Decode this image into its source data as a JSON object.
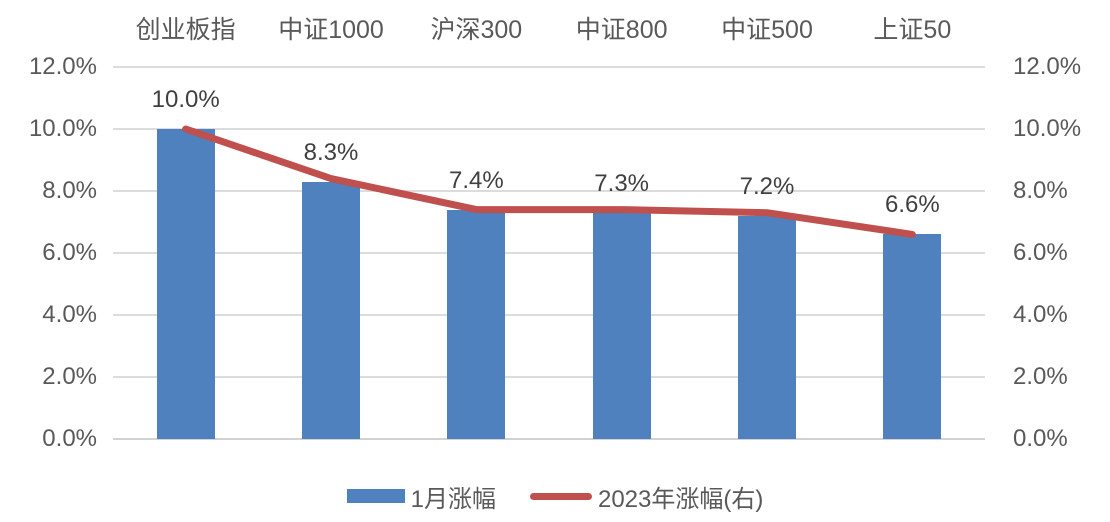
{
  "chart_data": {
    "type": "bar",
    "combo": "bar + line, dual percent axes",
    "categories": [
      "创业板指",
      "中证1000",
      "沪深300",
      "中证800",
      "中证500",
      "上证50"
    ],
    "series": [
      {
        "name": "1月涨幅",
        "type": "bar",
        "axis": "left",
        "color": "#4E81BD",
        "values": [
          10.0,
          8.3,
          7.4,
          7.3,
          7.2,
          6.6
        ],
        "labels": [
          "10.0%",
          "8.3%",
          "7.4%",
          "7.3%",
          "7.2%",
          "6.6%"
        ]
      },
      {
        "name": "2023年涨幅(右)",
        "type": "line",
        "axis": "right",
        "color": "#C0504D",
        "values": [
          10.0,
          8.4,
          7.4,
          7.4,
          7.3,
          6.6
        ]
      }
    ],
    "left_axis": {
      "min": 0,
      "max": 12,
      "step": 2,
      "ticks": [
        "12.0%",
        "10.0%",
        "8.0%",
        "6.0%",
        "4.0%",
        "2.0%",
        "0.0%"
      ]
    },
    "right_axis": {
      "min": 0,
      "max": 12,
      "step": 2,
      "ticks": [
        "12.0%",
        "10.0%",
        "8.0%",
        "6.0%",
        "4.0%",
        "2.0%",
        "0.0%"
      ]
    },
    "grid": true,
    "category_labels_position": "top",
    "legend_position": "bottom",
    "colors": {
      "background": "#ffffff",
      "gridline": "#dcdcdc",
      "axis_text": "#595959",
      "data_label_text": "#3f3f3f"
    }
  }
}
